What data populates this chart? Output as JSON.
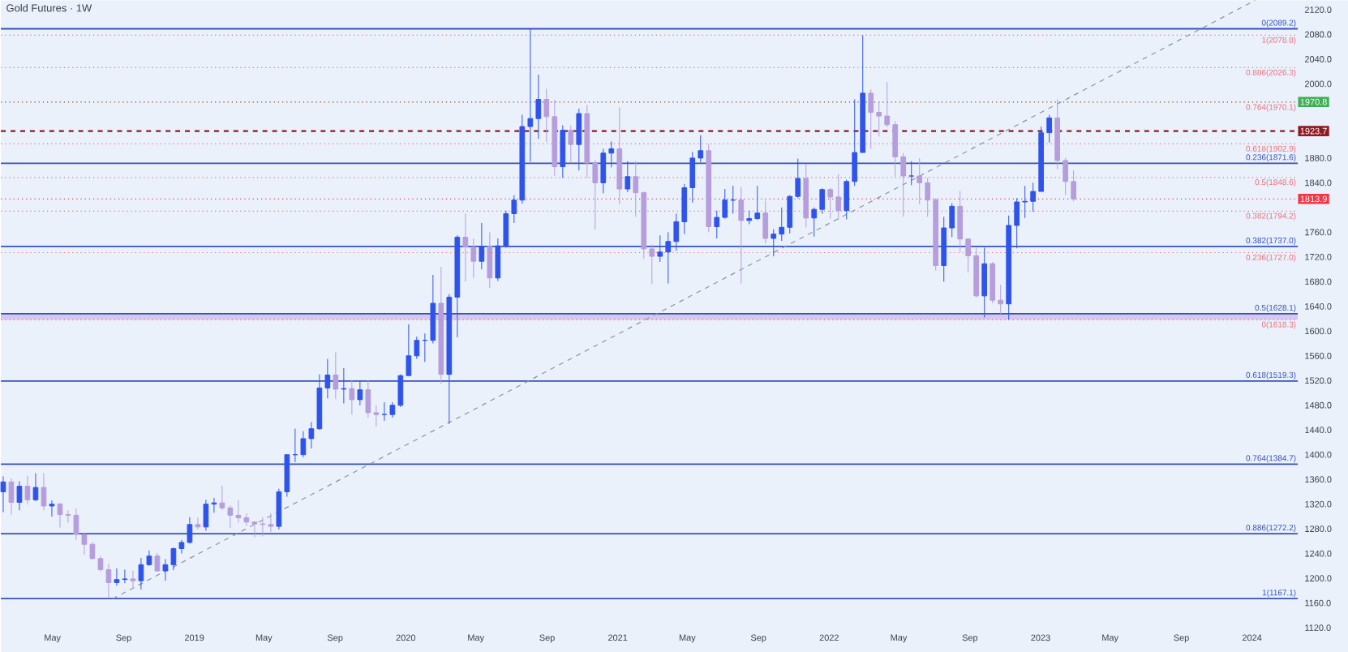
{
  "chart_data": {
    "type": "candlestick",
    "title": "Gold Futures · 1W",
    "x": [
      "2018-02-05",
      "2018-02-19",
      "2018-03-05",
      "2018-03-19",
      "2018-04-02",
      "2018-04-16",
      "2018-04-30",
      "2018-05-14",
      "2018-05-28",
      "2018-06-11",
      "2018-06-25",
      "2018-07-09",
      "2018-07-23",
      "2018-08-06",
      "2018-08-20",
      "2018-09-03",
      "2018-09-17",
      "2018-10-01",
      "2018-10-15",
      "2018-10-29",
      "2018-11-12",
      "2018-11-26",
      "2018-12-10",
      "2018-12-24",
      "2019-01-07",
      "2019-01-21",
      "2019-02-04",
      "2019-02-18",
      "2019-03-04",
      "2019-03-18",
      "2019-04-01",
      "2019-04-15",
      "2019-04-29",
      "2019-05-13",
      "2019-05-27",
      "2019-06-10",
      "2019-06-24",
      "2019-07-08",
      "2019-07-22",
      "2019-08-05",
      "2019-08-19",
      "2019-09-02",
      "2019-09-16",
      "2019-09-30",
      "2019-10-14",
      "2019-10-28",
      "2019-11-11",
      "2019-11-25",
      "2019-12-09",
      "2019-12-23",
      "2020-01-06",
      "2020-01-20",
      "2020-02-03",
      "2020-02-17",
      "2020-03-02",
      "2020-03-16",
      "2020-03-30",
      "2020-04-13",
      "2020-04-27",
      "2020-05-11",
      "2020-05-25",
      "2020-06-08",
      "2020-06-22",
      "2020-07-06",
      "2020-07-20",
      "2020-08-03",
      "2020-08-17",
      "2020-08-31",
      "2020-09-14",
      "2020-09-28",
      "2020-10-12",
      "2020-10-26",
      "2020-11-09",
      "2020-11-23",
      "2020-12-07",
      "2020-12-21",
      "2021-01-04",
      "2021-01-18",
      "2021-02-01",
      "2021-02-15",
      "2021-03-01",
      "2021-03-15",
      "2021-03-29",
      "2021-04-12",
      "2021-04-26",
      "2021-05-10",
      "2021-05-24",
      "2021-06-07",
      "2021-06-21",
      "2021-07-05",
      "2021-07-19",
      "2021-08-02",
      "2021-08-16",
      "2021-08-30",
      "2021-09-13",
      "2021-09-27",
      "2021-10-11",
      "2021-10-25",
      "2021-11-08",
      "2021-11-22",
      "2021-12-06",
      "2021-12-20",
      "2022-01-03",
      "2022-01-17",
      "2022-01-31",
      "2022-02-14",
      "2022-02-28",
      "2022-03-14",
      "2022-03-28",
      "2022-04-11",
      "2022-04-25",
      "2022-05-09",
      "2022-05-23",
      "2022-06-06",
      "2022-06-20",
      "2022-07-04",
      "2022-07-18",
      "2022-08-01",
      "2022-08-15",
      "2022-08-29",
      "2022-09-12",
      "2022-09-26",
      "2022-10-10",
      "2022-10-24",
      "2022-11-07",
      "2022-11-21",
      "2022-12-05",
      "2022-12-19",
      "2023-01-02",
      "2023-01-16",
      "2023-01-30",
      "2023-02-13",
      "2023-02-27"
    ],
    "ohlc": [
      [
        1340,
        1365,
        1307,
        1356
      ],
      [
        1356,
        1362,
        1303,
        1323
      ],
      [
        1323,
        1357,
        1310,
        1349
      ],
      [
        1349,
        1366,
        1320,
        1327
      ],
      [
        1327,
        1370,
        1325,
        1347
      ],
      [
        1347,
        1370,
        1310,
        1317
      ],
      [
        1317,
        1326,
        1300,
        1320
      ],
      [
        1320,
        1322,
        1282,
        1303
      ],
      [
        1303,
        1310,
        1290,
        1302
      ],
      [
        1302,
        1313,
        1262,
        1271
      ],
      [
        1271,
        1272,
        1238,
        1255
      ],
      [
        1255,
        1258,
        1230,
        1232
      ],
      [
        1232,
        1236,
        1211,
        1214
      ],
      [
        1214,
        1224,
        1167.1,
        1193
      ],
      [
        1193,
        1216,
        1188,
        1198
      ],
      [
        1198,
        1214,
        1192,
        1199
      ],
      [
        1199,
        1212,
        1185,
        1196
      ],
      [
        1196,
        1233,
        1182,
        1222
      ],
      [
        1222,
        1245,
        1220,
        1236
      ],
      [
        1236,
        1241,
        1211,
        1212
      ],
      [
        1212,
        1231,
        1196,
        1222
      ],
      [
        1222,
        1250,
        1213,
        1248
      ],
      [
        1248,
        1262,
        1240,
        1258
      ],
      [
        1258,
        1299,
        1256,
        1287
      ],
      [
        1287,
        1298,
        1279,
        1283
      ],
      [
        1283,
        1327,
        1277,
        1320
      ],
      [
        1320,
        1330,
        1306,
        1322
      ],
      [
        1322,
        1350,
        1311,
        1314
      ],
      [
        1314,
        1318,
        1281,
        1302
      ],
      [
        1302,
        1326,
        1290,
        1298
      ],
      [
        1298,
        1305,
        1285,
        1291
      ],
      [
        1291,
        1292,
        1266,
        1288
      ],
      [
        1288,
        1299,
        1268,
        1287
      ],
      [
        1287,
        1305,
        1275,
        1284
      ],
      [
        1284,
        1345,
        1279,
        1340
      ],
      [
        1340,
        1400,
        1332,
        1400
      ],
      [
        1400,
        1442,
        1388,
        1400
      ],
      [
        1400,
        1438,
        1396,
        1426
      ],
      [
        1426,
        1453,
        1410,
        1442
      ],
      [
        1442,
        1530,
        1440,
        1508
      ],
      [
        1508,
        1555,
        1491,
        1529
      ],
      [
        1529,
        1566,
        1490,
        1506
      ],
      [
        1506,
        1540,
        1483,
        1507
      ],
      [
        1507,
        1521,
        1465,
        1489
      ],
      [
        1489,
        1520,
        1480,
        1505
      ],
      [
        1505,
        1520,
        1460,
        1468
      ],
      [
        1468,
        1480,
        1446,
        1465
      ],
      [
        1465,
        1485,
        1455,
        1465
      ],
      [
        1465,
        1485,
        1460,
        1480
      ],
      [
        1480,
        1530,
        1477,
        1528
      ],
      [
        1528,
        1611,
        1528,
        1560
      ],
      [
        1560,
        1591,
        1555,
        1585
      ],
      [
        1585,
        1596,
        1550,
        1585
      ],
      [
        1585,
        1691,
        1580,
        1645
      ],
      [
        1645,
        1704,
        1515,
        1530
      ],
      [
        1530,
        1660,
        1450,
        1655
      ],
      [
        1655,
        1755,
        1590,
        1752
      ],
      [
        1752,
        1790,
        1680,
        1736
      ],
      [
        1736,
        1750,
        1686,
        1713
      ],
      [
        1713,
        1775,
        1700,
        1737
      ],
      [
        1737,
        1760,
        1670,
        1686
      ],
      [
        1686,
        1750,
        1681,
        1738
      ],
      [
        1738,
        1795,
        1735,
        1790
      ],
      [
        1790,
        1820,
        1775,
        1812
      ],
      [
        1812,
        1950,
        1806,
        1931
      ],
      [
        1931,
        2089.2,
        1874,
        1944
      ],
      [
        1944,
        2015,
        1911,
        1975
      ],
      [
        1975,
        1992,
        1906,
        1947
      ],
      [
        1947,
        1974,
        1851,
        1866
      ],
      [
        1866,
        1933,
        1848,
        1925
      ],
      [
        1925,
        1933,
        1873,
        1902
      ],
      [
        1902,
        1960,
        1860,
        1952
      ],
      [
        1952,
        1966,
        1848,
        1872
      ],
      [
        1872,
        1877,
        1764,
        1840
      ],
      [
        1840,
        1895,
        1823,
        1888
      ],
      [
        1888,
        1907,
        1865,
        1895
      ],
      [
        1895,
        1962,
        1805,
        1830
      ],
      [
        1830,
        1875,
        1825,
        1850
      ],
      [
        1850,
        1875,
        1785,
        1824
      ],
      [
        1824,
        1826,
        1717,
        1733
      ],
      [
        1733,
        1740,
        1676,
        1721
      ],
      [
        1721,
        1755,
        1712,
        1728
      ],
      [
        1728,
        1760,
        1677,
        1745
      ],
      [
        1745,
        1790,
        1730,
        1777
      ],
      [
        1777,
        1838,
        1757,
        1832
      ],
      [
        1832,
        1890,
        1808,
        1880
      ],
      [
        1880,
        1917,
        1873,
        1892
      ],
      [
        1892,
        1903,
        1760,
        1769
      ],
      [
        1769,
        1795,
        1750,
        1784
      ],
      [
        1784,
        1830,
        1782,
        1812
      ],
      [
        1812,
        1835,
        1790,
        1812
      ],
      [
        1812,
        1833,
        1677,
        1779
      ],
      [
        1779,
        1795,
        1773,
        1782
      ],
      [
        1782,
        1835,
        1780,
        1791
      ],
      [
        1791,
        1811,
        1742,
        1750
      ],
      [
        1750,
        1765,
        1721,
        1757
      ],
      [
        1757,
        1800,
        1746,
        1768
      ],
      [
        1768,
        1820,
        1758,
        1818
      ],
      [
        1818,
        1879,
        1815,
        1847
      ],
      [
        1847,
        1870,
        1768,
        1783
      ],
      [
        1783,
        1800,
        1753,
        1797
      ],
      [
        1797,
        1831,
        1790,
        1829
      ],
      [
        1829,
        1832,
        1782,
        1817
      ],
      [
        1817,
        1854,
        1780,
        1795
      ],
      [
        1795,
        1845,
        1781,
        1842
      ],
      [
        1842,
        1975,
        1835,
        1889
      ],
      [
        1889,
        2078.8,
        1889,
        1985
      ],
      [
        1985,
        1991,
        1895,
        1954
      ],
      [
        1954,
        1971,
        1915,
        1948
      ],
      [
        1948,
        2003,
        1930,
        1934
      ],
      [
        1934,
        1940,
        1850,
        1882
      ],
      [
        1882,
        1888,
        1785,
        1851
      ],
      [
        1851,
        1875,
        1836,
        1851
      ],
      [
        1851,
        1880,
        1805,
        1840
      ],
      [
        1840,
        1848,
        1785,
        1812
      ],
      [
        1812,
        1815,
        1698,
        1706
      ],
      [
        1706,
        1785,
        1680,
        1767
      ],
      [
        1767,
        1807,
        1752,
        1802
      ],
      [
        1802,
        1827,
        1728,
        1749
      ],
      [
        1749,
        1750,
        1695,
        1722
      ],
      [
        1722,
        1735,
        1654,
        1657
      ],
      [
        1657,
        1735,
        1622,
        1709
      ],
      [
        1709,
        1712,
        1645,
        1650
      ],
      [
        1650,
        1675,
        1628,
        1644
      ],
      [
        1644,
        1787,
        1618.3,
        1771
      ],
      [
        1771,
        1815,
        1734,
        1809
      ],
      [
        1809,
        1835,
        1783,
        1810
      ],
      [
        1810,
        1840,
        1793,
        1826
      ],
      [
        1826,
        1931,
        1826,
        1921
      ],
      [
        1921,
        1950,
        1905,
        1945
      ],
      [
        1945,
        1975,
        1862,
        1876
      ],
      [
        1876,
        1880,
        1820,
        1842
      ],
      [
        1842,
        1860,
        1810,
        1813.9
      ]
    ],
    "series": [
      {
        "type": "line",
        "x": [
          "2018-08-13",
          "2024-01-06"
        ],
        "values": [
          1167,
          2135
        ],
        "color": "#8a949e",
        "line_style": "dashed"
      }
    ],
    "xlim": [
      "2018-02-01",
      "2024-03-20"
    ],
    "xticks": [
      {
        "value": "2018-05-01",
        "label": "May"
      },
      {
        "value": "2018-09-01",
        "label": "Sep"
      },
      {
        "value": "2019-01-01",
        "label": "2019"
      },
      {
        "value": "2019-05-01",
        "label": "May"
      },
      {
        "value": "2019-09-01",
        "label": "Sep"
      },
      {
        "value": "2020-01-01",
        "label": "2020"
      },
      {
        "value": "2020-05-01",
        "label": "May"
      },
      {
        "value": "2020-09-01",
        "label": "Sep"
      },
      {
        "value": "2021-01-01",
        "label": "2021"
      },
      {
        "value": "2021-05-01",
        "label": "May"
      },
      {
        "value": "2021-09-01",
        "label": "Sep"
      },
      {
        "value": "2022-01-01",
        "label": "2022"
      },
      {
        "value": "2022-05-01",
        "label": "May"
      },
      {
        "value": "2022-09-01",
        "label": "Sep"
      },
      {
        "value": "2023-01-01",
        "label": "2023"
      },
      {
        "value": "2023-05-01",
        "label": "May"
      },
      {
        "value": "2023-09-01",
        "label": "Sep"
      },
      {
        "value": "2024-01-01",
        "label": "2024"
      }
    ],
    "ylim": [
      1120,
      2135
    ],
    "yticks": [
      {
        "value": 1120,
        "label": "1120.0"
      },
      {
        "value": 1160,
        "label": "1160.0"
      },
      {
        "value": 1200,
        "label": "1200.0"
      },
      {
        "value": 1240,
        "label": "1240.0"
      },
      {
        "value": 1280,
        "label": "1280.0"
      },
      {
        "value": 1320,
        "label": "1320.0"
      },
      {
        "value": 1360,
        "label": "1360.0"
      },
      {
        "value": 1400,
        "label": "1400.0"
      },
      {
        "value": 1440,
        "label": "1440.0"
      },
      {
        "value": 1480,
        "label": "1480.0"
      },
      {
        "value": 1520,
        "label": "1520.0"
      },
      {
        "value": 1560,
        "label": "1560.0"
      },
      {
        "value": 1600,
        "label": "1600.0"
      },
      {
        "value": 1640,
        "label": "1640.0"
      },
      {
        "value": 1680,
        "label": "1680.0"
      },
      {
        "value": 1720,
        "label": "1720.0"
      },
      {
        "value": 1760,
        "label": "1760.0"
      },
      {
        "value": 1840,
        "label": "1840.0"
      },
      {
        "value": 1880,
        "label": "1880.0"
      },
      {
        "value": 2000,
        "label": "2000.0"
      },
      {
        "value": 2040,
        "label": "2040.0"
      },
      {
        "value": 2080,
        "label": "2080.0"
      },
      {
        "value": 2120,
        "label": "2120.0"
      }
    ],
    "bands": [
      {
        "axis": "y",
        "from": 1618.3,
        "to": 1628.1,
        "color": "#d7c6ee"
      }
    ],
    "ref_lines": [
      {
        "axis": "y",
        "value": 2089.2,
        "color": "#3552b8",
        "line_style": "solid"
      },
      {
        "axis": "y",
        "value": 1871.6,
        "color": "#3552b8",
        "line_style": "solid"
      },
      {
        "axis": "y",
        "value": 1737.0,
        "color": "#3552b8",
        "line_style": "solid"
      },
      {
        "axis": "y",
        "value": 1628.1,
        "color": "#3552b8",
        "line_style": "solid"
      },
      {
        "axis": "y",
        "value": 1519.3,
        "color": "#3552b8",
        "line_style": "solid"
      },
      {
        "axis": "y",
        "value": 1384.7,
        "color": "#3552b8",
        "line_style": "solid"
      },
      {
        "axis": "y",
        "value": 1272.2,
        "color": "#3552b8",
        "line_style": "solid"
      },
      {
        "axis": "y",
        "value": 1167.1,
        "color": "#3552b8",
        "line_style": "solid"
      },
      {
        "axis": "y",
        "value": 2078.8,
        "color": "#e8707a",
        "line_style": "dotted"
      },
      {
        "axis": "y",
        "value": 2026.3,
        "color": "#e8707a",
        "line_style": "dotted"
      },
      {
        "axis": "y",
        "value": 1970.1,
        "color": "#e8707a",
        "line_style": "dotted"
      },
      {
        "axis": "y",
        "value": 1902.9,
        "color": "#e8707a",
        "line_style": "dotted"
      },
      {
        "axis": "y",
        "value": 1848.6,
        "color": "#e8707a",
        "line_style": "dotted"
      },
      {
        "axis": "y",
        "value": 1794.2,
        "color": "#e8707a",
        "line_style": "dotted"
      },
      {
        "axis": "y",
        "value": 1727.0,
        "color": "#e8707a",
        "line_style": "dotted"
      },
      {
        "axis": "y",
        "value": 1618.3,
        "color": "#e8707a",
        "line_style": "dotted"
      },
      {
        "axis": "y",
        "value": 1970.8,
        "color": "#3fae55",
        "line_style": "dotted",
        "label": "1970.8"
      },
      {
        "axis": "y",
        "value": 1923.7,
        "color": "#8e1b24",
        "line_style": "dashed",
        "label": "1923.7"
      },
      {
        "axis": "y",
        "value": 1813.9,
        "color": "#f23645",
        "line_style": "dotted",
        "label": "1813.9"
      }
    ],
    "annotations": [
      {
        "text": "0(2089.2)",
        "y": 2089.2
      },
      {
        "text": "0.236(1871.6)",
        "y": 1871.6
      },
      {
        "text": "0.382(1737.0)",
        "y": 1737.0
      },
      {
        "text": "0.5(1628.1)",
        "y": 1628.1
      },
      {
        "text": "0.618(1519.3)",
        "y": 1519.3
      },
      {
        "text": "0.764(1384.7)",
        "y": 1384.7
      },
      {
        "text": "0.886(1272.2)",
        "y": 1272.2
      },
      {
        "text": "1(1167.1)",
        "y": 1167.1
      },
      {
        "text": "1(2078.8)",
        "y": 2078.8
      },
      {
        "text": "0.886(2026.3)",
        "y": 2026.3
      },
      {
        "text": "0.764(1970.1)",
        "y": 1970.1
      },
      {
        "text": "0.618(1902.9)",
        "y": 1902.9
      },
      {
        "text": "0.5(1848.6)",
        "y": 1848.6
      },
      {
        "text": "0.382(1794.2)",
        "y": 1794.2
      },
      {
        "text": "0.236(1727.0)",
        "y": 1727.0
      },
      {
        "text": "0(1618.3)",
        "y": 1618.3
      }
    ]
  }
}
